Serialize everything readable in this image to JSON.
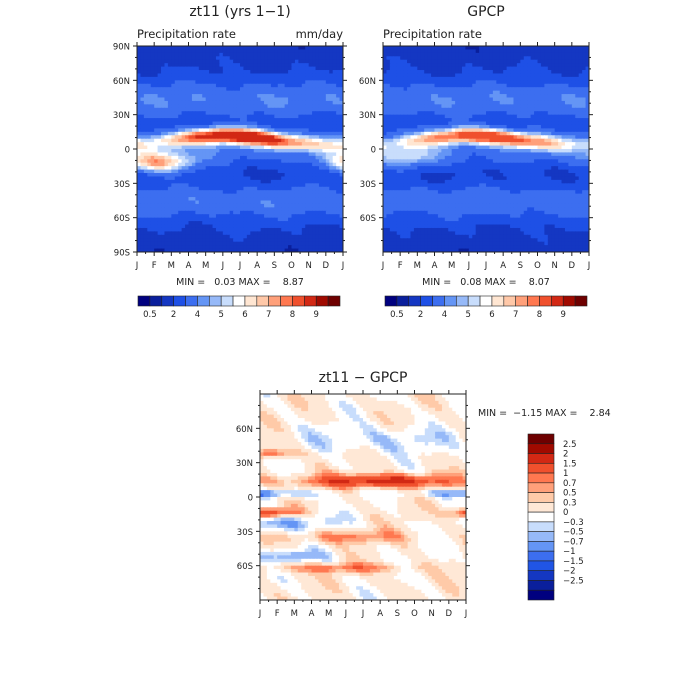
{
  "colors": {
    "abs_scale": [
      "#00007f",
      "#0a1f9c",
      "#1437c2",
      "#1e50e6",
      "#3c6ef0",
      "#6495f5",
      "#96b9f8",
      "#c8ddfc",
      "#ffffff",
      "#ffe6d2",
      "#ffc8a8",
      "#ffa07a",
      "#ff7850",
      "#f0502d",
      "#d22814",
      "#a00a00",
      "#6e0000"
    ],
    "diff_scale": [
      "#00007f",
      "#0a1f9c",
      "#1437c2",
      "#2055e6",
      "#3c6ef0",
      "#6495f5",
      "#96b9f8",
      "#c8ddfc",
      "#ffffff",
      "#ffe8d6",
      "#ffcaa8",
      "#ffa07a",
      "#ff7850",
      "#f0502d",
      "#d22814",
      "#a00a00",
      "#6e0000"
    ]
  },
  "chart_data": [
    {
      "type": "heatmap",
      "id": "model",
      "title": "zt11 (yrs 1−1)",
      "subtitle_left": "Precipitation rate",
      "subtitle_right": "mm/day",
      "stats": "MIN =   0.03 MAX =    8.87",
      "x_tick_labels": [
        "J",
        "F",
        "M",
        "A",
        "M",
        "J",
        "J",
        "A",
        "S",
        "O",
        "N",
        "D",
        "J"
      ],
      "y_tick_labels": [
        "90N",
        "60N",
        "30N",
        "0",
        "30S",
        "60S",
        "90S"
      ],
      "y_values": [
        90,
        60,
        30,
        0,
        -30,
        -60,
        -90
      ],
      "xlim": [
        0,
        12
      ],
      "ylim": [
        -90,
        90
      ],
      "colorbar_labels": [
        "0.5",
        "2",
        "4",
        "5",
        "6",
        "7",
        "8",
        "9"
      ],
      "max_value": 8.87,
      "itcz_lat": 8,
      "itcz_amp": 7,
      "spcz_lat": -12,
      "spcz_month": 1.2,
      "spcz_amp": 4.5
    },
    {
      "type": "heatmap",
      "id": "obs",
      "title": "GPCP",
      "subtitle_left": "Precipitation rate",
      "stats": "MIN =   0.08 MAX =    8.07",
      "x_tick_labels": [
        "J",
        "F",
        "M",
        "A",
        "M",
        "J",
        "J",
        "A",
        "S",
        "O",
        "N",
        "D",
        "J"
      ],
      "y_tick_labels": [
        "60N",
        "30N",
        "0",
        "30S",
        "60S"
      ],
      "y_values": [
        60,
        30,
        0,
        -30,
        -60
      ],
      "xlim": [
        0,
        12
      ],
      "ylim": [
        -90,
        90
      ],
      "colorbar_labels": [
        "0.5",
        "2",
        "4",
        "5",
        "6",
        "7",
        "8",
        "9"
      ],
      "max_value": 8.07,
      "itcz_lat": 8,
      "itcz_amp": 6,
      "spcz_lat": -8,
      "spcz_month": 1.5,
      "spcz_amp": 2
    },
    {
      "type": "heatmap",
      "id": "diff",
      "title": "zt11 − GPCP",
      "stats": "MIN =  −1.15 MAX =    2.84",
      "x_tick_labels": [
        "J",
        "F",
        "M",
        "A",
        "M",
        "J",
        "J",
        "A",
        "S",
        "O",
        "N",
        "D",
        "J"
      ],
      "y_tick_labels": [
        "60N",
        "30N",
        "0",
        "30S",
        "60S"
      ],
      "y_values": [
        60,
        30,
        0,
        -30,
        -60
      ],
      "xlim": [
        0,
        12
      ],
      "ylim": [
        -90,
        90
      ],
      "colorbar_labels": [
        "2.5",
        "2",
        "1.5",
        "1",
        "0.7",
        "0.5",
        "0.3",
        "0",
        "−0.3",
        "−0.5",
        "−0.7",
        "−1",
        "−1.5",
        "−2",
        "−2.5"
      ],
      "min_value": -1.15,
      "max_value": 2.84
    }
  ]
}
